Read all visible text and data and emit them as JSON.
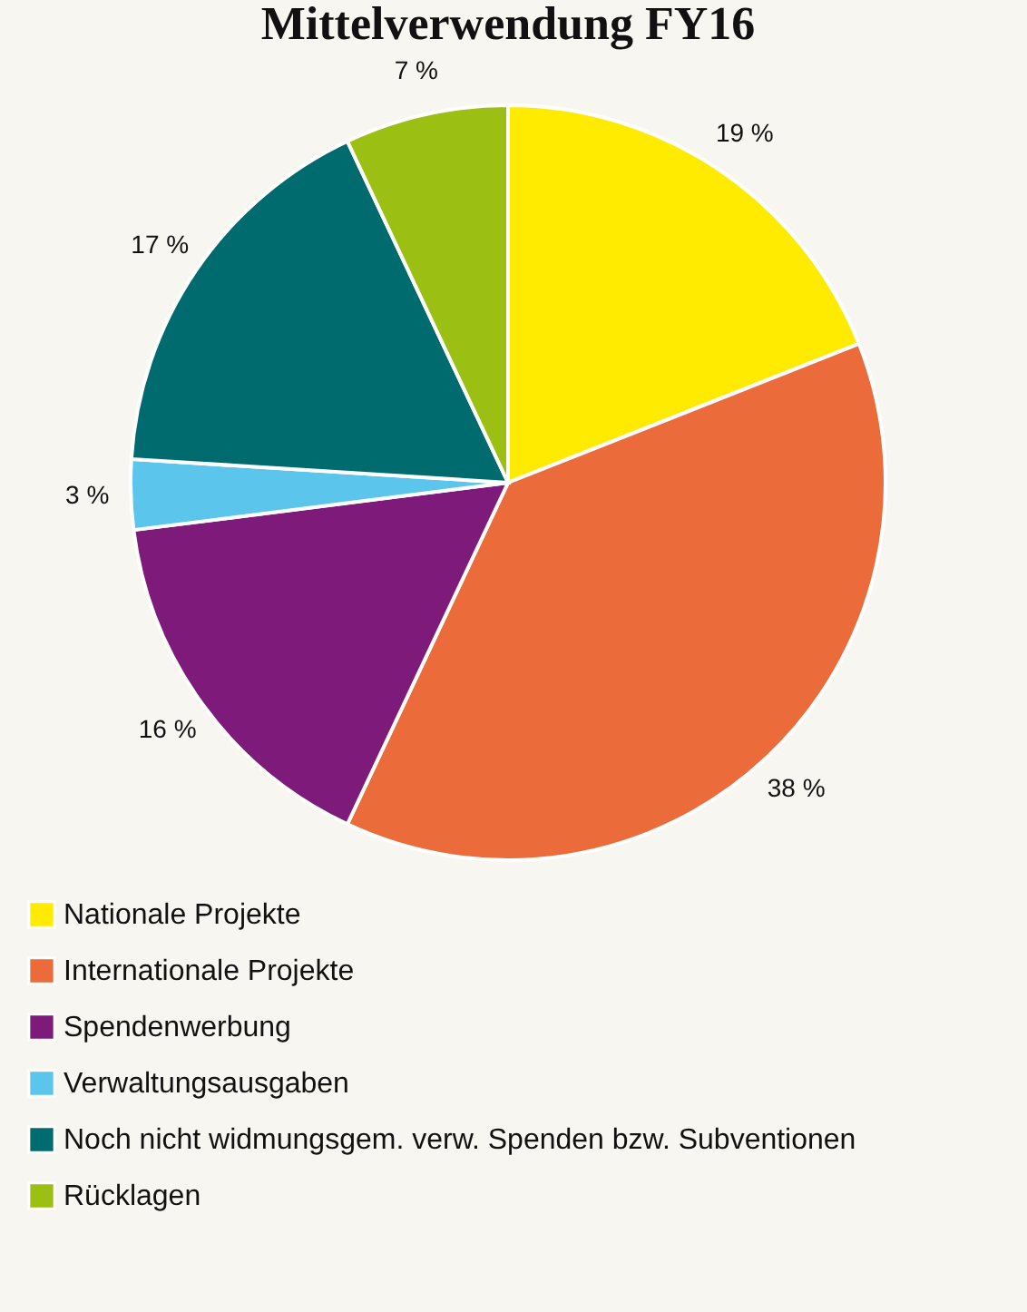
{
  "chart_data": {
    "type": "pie",
    "title": "Mittelverwendung FY16",
    "categories": [
      "Nationale Projekte",
      "Internationale Projekte",
      "Spendenwerbung",
      "Verwaltungsausgaben",
      "Noch nicht widmungsgem. verw. Spenden bzw. Subventionen",
      "Rücklagen"
    ],
    "values": [
      19,
      38,
      16,
      3,
      17,
      7
    ],
    "colors": [
      "#ffeb00",
      "#eb6b3a",
      "#7e1a7a",
      "#5bc5ec",
      "#006b6e",
      "#9bbf12"
    ],
    "value_labels": [
      "19 %",
      "38 %",
      "16 %",
      "3 %",
      "17 %",
      "7 %"
    ],
    "legend": "bottom left"
  }
}
